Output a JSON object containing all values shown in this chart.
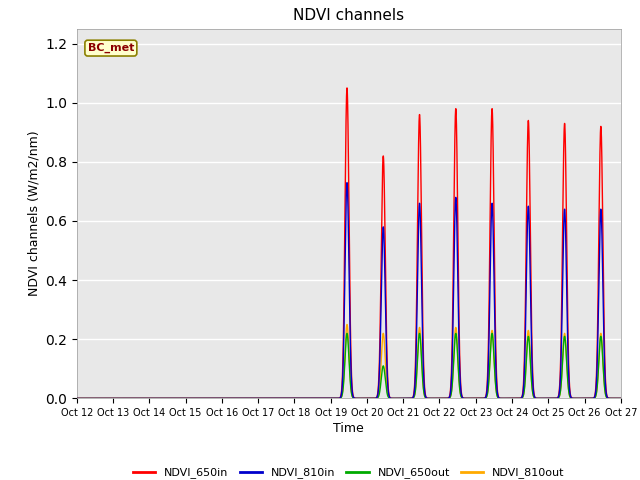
{
  "title": "NDVI channels",
  "xlabel": "Time",
  "ylabel": "NDVI channels (W/m2/nm)",
  "plot_bg_color": "#e8e8e8",
  "fig_bg_color": "#ffffff",
  "annotation_text": "BC_met",
  "annotation_facecolor": "#ffffcc",
  "annotation_edgecolor": "#8B8000",
  "annotation_textcolor": "#8B0000",
  "legend_labels": [
    "NDVI_650in",
    "NDVI_810in",
    "NDVI_650out",
    "NDVI_810out"
  ],
  "line_colors": [
    "#ff0000",
    "#0000cc",
    "#00aa00",
    "#ffaa00"
  ],
  "ylim": [
    0,
    1.25
  ],
  "spike_days": [
    7,
    8,
    9,
    10,
    11,
    12,
    13,
    14
  ],
  "spike_peaks_650in": [
    1.05,
    0.82,
    0.96,
    0.98,
    0.98,
    0.94,
    0.93,
    0.92
  ],
  "spike_peaks_810in": [
    0.73,
    0.58,
    0.66,
    0.68,
    0.66,
    0.65,
    0.64,
    0.64
  ],
  "spike_peaks_650out": [
    0.22,
    0.11,
    0.22,
    0.22,
    0.22,
    0.21,
    0.21,
    0.21
  ],
  "spike_peaks_810out": [
    0.25,
    0.22,
    0.24,
    0.24,
    0.23,
    0.23,
    0.22,
    0.22
  ],
  "xtick_labels": [
    "Oct 12",
    "Oct 13",
    "Oct 14",
    "Oct 15",
    "Oct 16",
    "Oct 17",
    "Oct 18",
    "Oct 19",
    "Oct 20",
    "Oct 21",
    "Oct 22",
    "Oct 23",
    "Oct 24",
    "Oct 25",
    "Oct 26",
    "Oct 27"
  ]
}
